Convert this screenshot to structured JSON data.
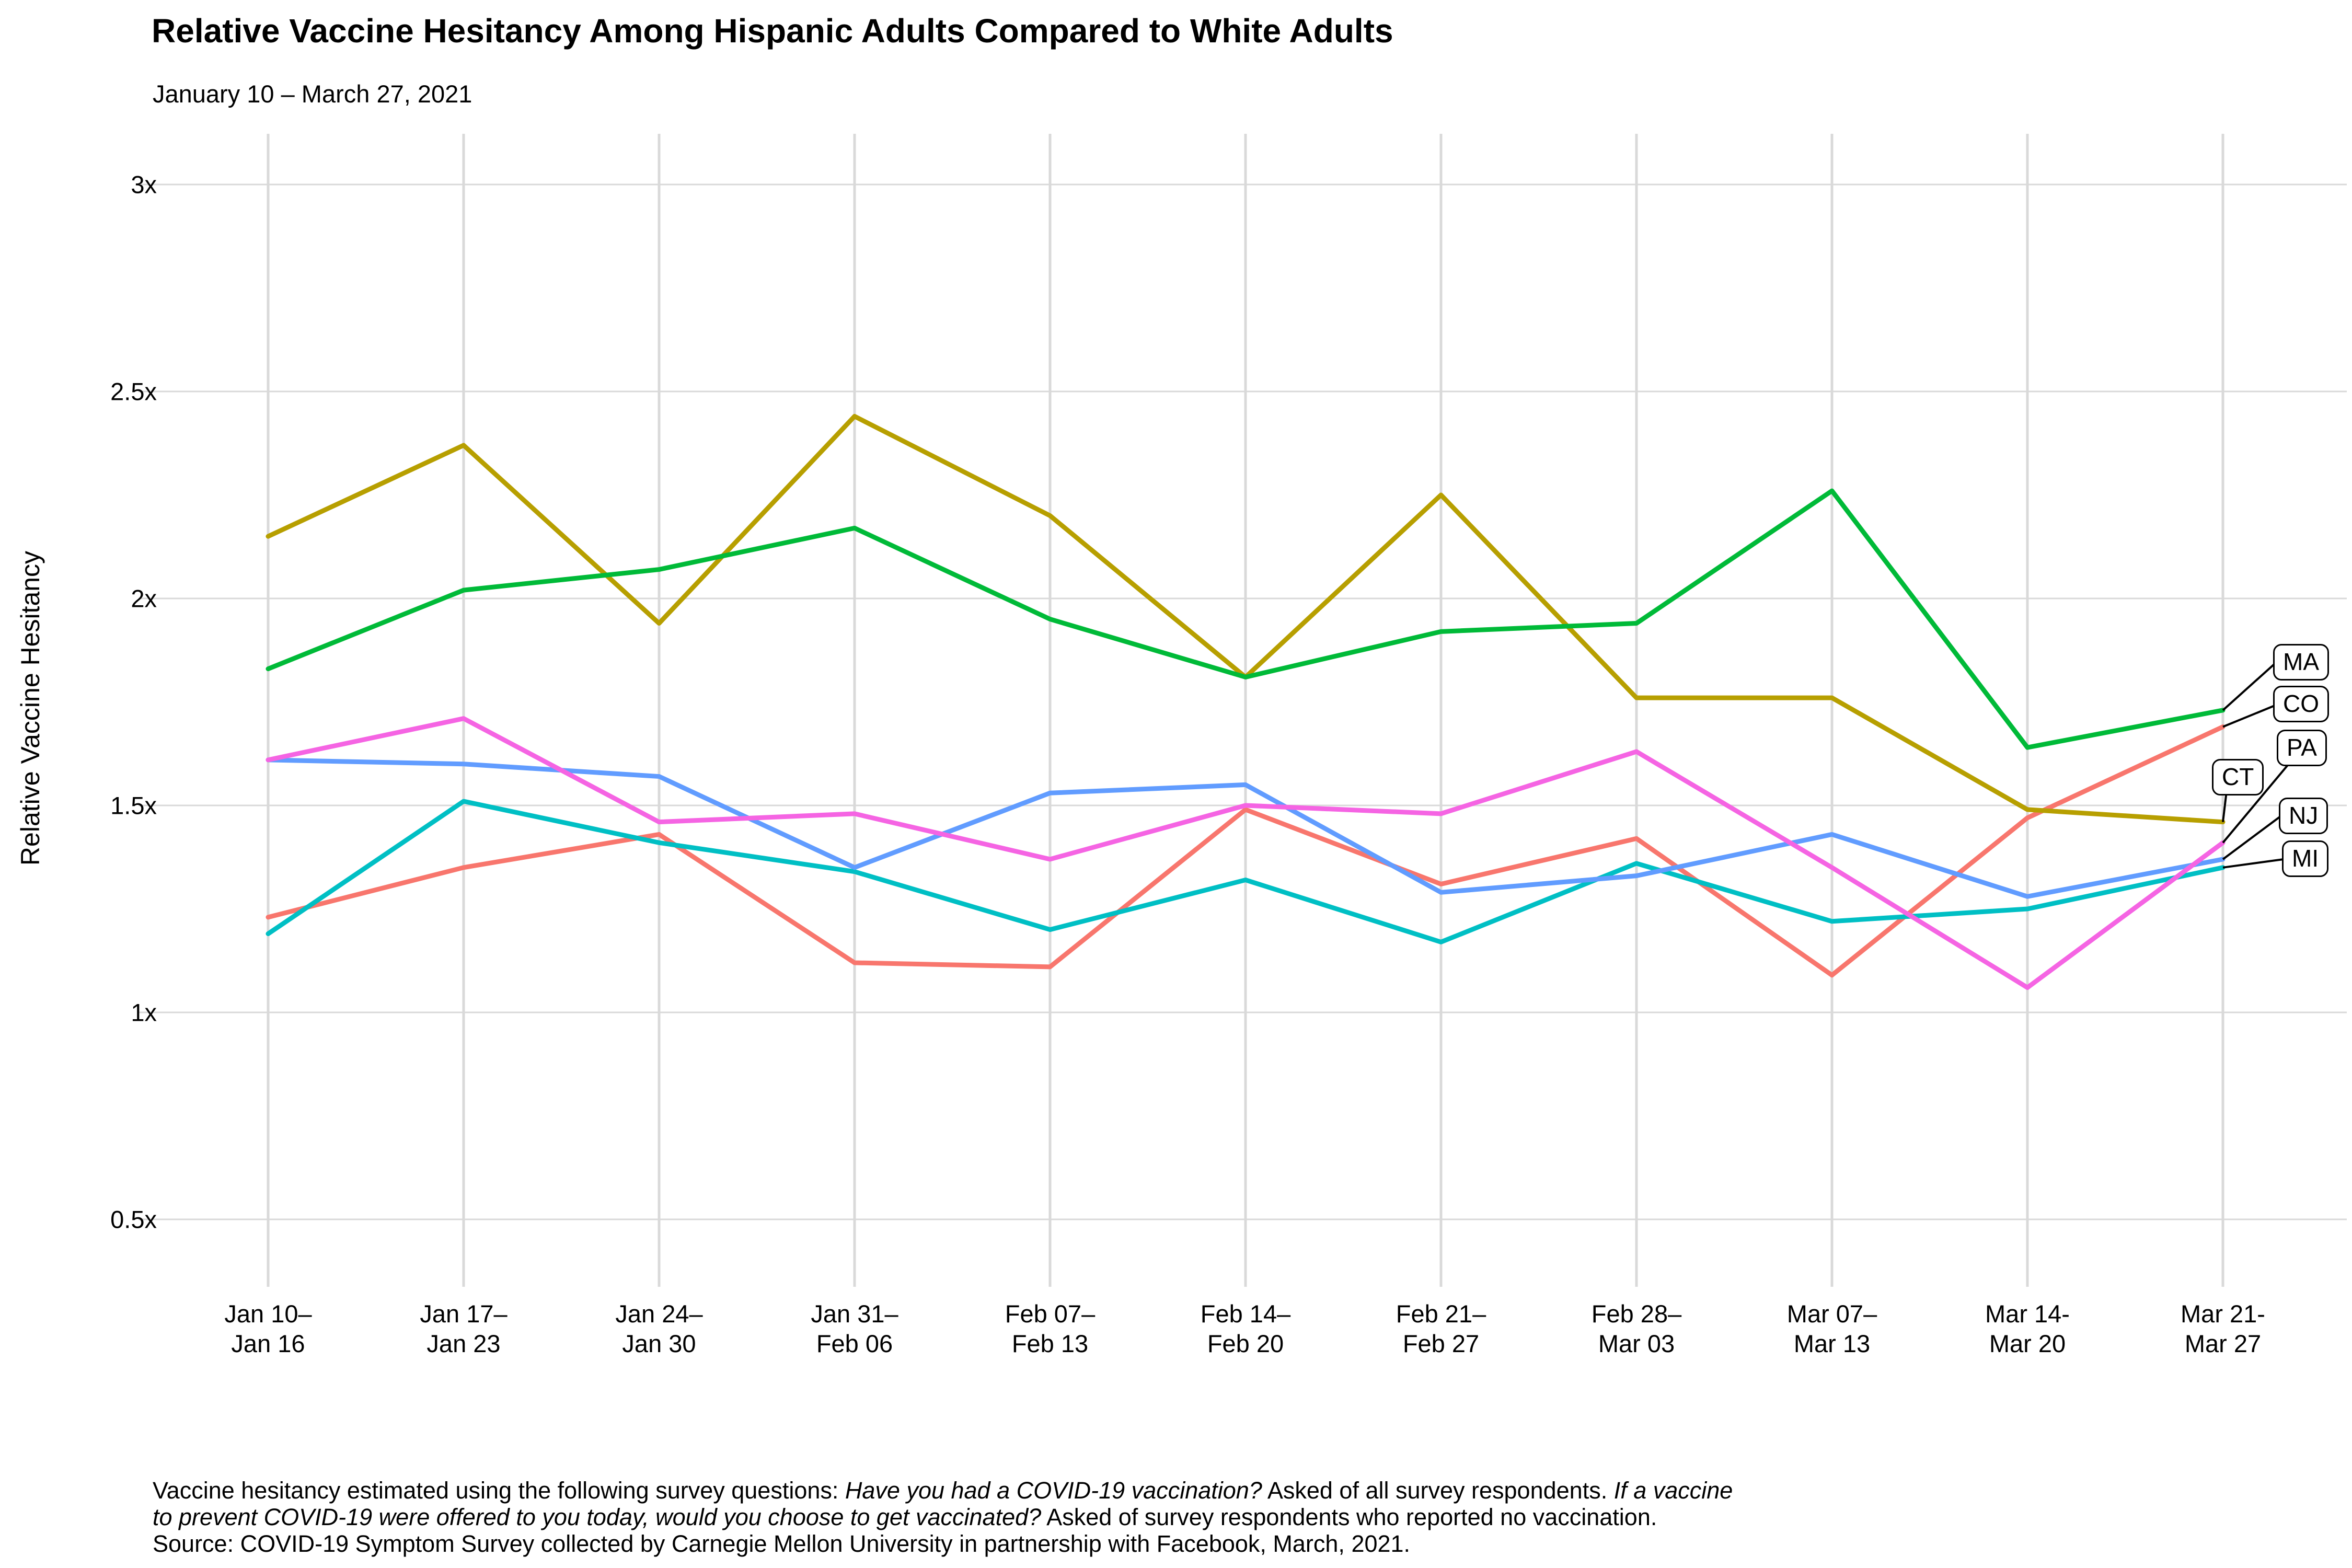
{
  "page": {
    "title": "Relative Vaccine Hesitancy Among Hispanic Adults Compared to White Adults",
    "subtitle": "January 10 – March 27, 2021"
  },
  "footer": {
    "lines": [
      [
        {
          "text": "Vaccine hesitancy estimated using the following survey questions: ",
          "italic": false
        },
        {
          "text": "Have you had a COVID-19 vaccination?",
          "italic": true
        },
        {
          "text": " Asked of all survey respondents. ",
          "italic": false
        },
        {
          "text": "If a vaccine",
          "italic": true
        }
      ],
      [
        {
          "text": "to prevent COVID-19 were offered to you today, would you choose to get vaccinated?",
          "italic": true
        },
        {
          "text": " Asked of survey respondents who reported no vaccination.",
          "italic": false
        }
      ],
      [
        {
          "text": "Source: COVID-19 Symptom Survey collected by Carnegie Mellon University in partnership with Facebook, March, 2021.",
          "italic": false
        }
      ]
    ]
  },
  "chart_data": {
    "type": "line",
    "title": "Relative Vaccine Hesitancy Among Hispanic Adults Compared to White Adults",
    "subtitle": "January 10 – March 27, 2021",
    "ylabel": "Relative Vaccine Hesitancy",
    "xlabel": "",
    "grid": true,
    "legend_position": "right-edge-direct-labels",
    "x_tick_labels": [
      "Jan 10–\nJan 16",
      "Jan 17–\nJan 23",
      "Jan 24–\nJan 30",
      "Jan 31–\nFeb 06",
      "Feb 07–\nFeb 13",
      "Feb 14–\nFeb 20",
      "Feb 21–\nFeb 27",
      "Feb 28–\nMar 03",
      "Mar 07–\nMar 13",
      "Mar 14-\nMar 20",
      "Mar 21-\nMar 27"
    ],
    "y_tick_labels": [
      "3x",
      "2.5x",
      "2x",
      "1.5x",
      "1x",
      "0.5x"
    ],
    "y_tick_values": [
      3,
      2.5,
      2,
      1.5,
      1,
      0.5
    ],
    "ylim": [
      0.34,
      3.11
    ],
    "gridline_color": "#d9d9d9",
    "series": [
      {
        "name": "CO",
        "color": "#F8766D",
        "values": [
          1.23,
          1.35,
          1.43,
          1.12,
          1.11,
          1.49,
          1.31,
          1.42,
          1.09,
          1.47,
          1.69
        ]
      },
      {
        "name": "CT",
        "color": "#B79F00",
        "values": [
          2.15,
          2.37,
          1.94,
          2.44,
          2.2,
          1.81,
          2.25,
          1.76,
          1.76,
          1.49,
          1.46
        ]
      },
      {
        "name": "MA",
        "color": "#00BA38",
        "values": [
          1.83,
          2.02,
          2.07,
          2.17,
          1.95,
          1.81,
          1.92,
          1.94,
          2.26,
          1.64,
          1.73
        ]
      },
      {
        "name": "MI",
        "color": "#00BFC4",
        "values": [
          1.19,
          1.51,
          1.41,
          1.34,
          1.2,
          1.32,
          1.17,
          1.36,
          1.22,
          1.25,
          1.35
        ]
      },
      {
        "name": "NJ",
        "color": "#619CFF",
        "values": [
          1.61,
          1.6,
          1.57,
          1.35,
          1.53,
          1.55,
          1.29,
          1.33,
          1.43,
          1.28,
          1.37
        ]
      },
      {
        "name": "PA",
        "color": "#F564E3",
        "values": [
          1.61,
          1.71,
          1.46,
          1.48,
          1.37,
          1.5,
          1.48,
          1.63,
          1.35,
          1.06,
          1.41
        ]
      }
    ],
    "label_order_top_to_bottom": [
      "MA",
      "CO",
      "PA",
      "CT",
      "NJ",
      "MI"
    ]
  }
}
